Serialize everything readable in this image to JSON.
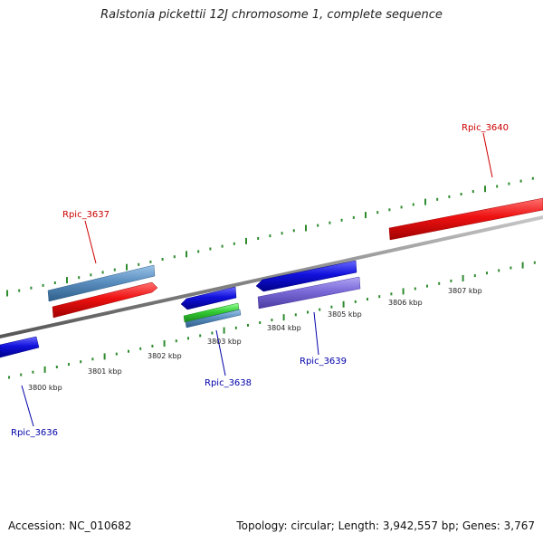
{
  "title": "Ralstonia pickettii 12J chromosome 1, complete sequence",
  "footer": {
    "accession": "Accession: NC_010682",
    "summary": "Topology: circular; Length: 3,942,557 bp; Genes: 3,767"
  },
  "colors": {
    "backbone": "#888888",
    "tick": "#2e8b2e",
    "red_gene": "#ee1111",
    "blue_gene": "#1111dd",
    "steel_gene": "#5b8fc0",
    "purple_gene": "#7a6ad8",
    "green_gene": "#33cc33",
    "red_label": "#cc0000",
    "blue_label": "#0000aa"
  },
  "scale_labels": [
    "3800 kbp",
    "3801 kbp",
    "3802 kbp",
    "3803 kbp",
    "3804 kbp",
    "3805 kbp",
    "3806 kbp",
    "3807 kbp"
  ],
  "gene_labels": {
    "rpic_3636": "Rpic_3636",
    "rpic_3637": "Rpic_3637",
    "rpic_3638": "Rpic_3638",
    "rpic_3639": "Rpic_3639",
    "rpic_3640": "Rpic_3640"
  }
}
